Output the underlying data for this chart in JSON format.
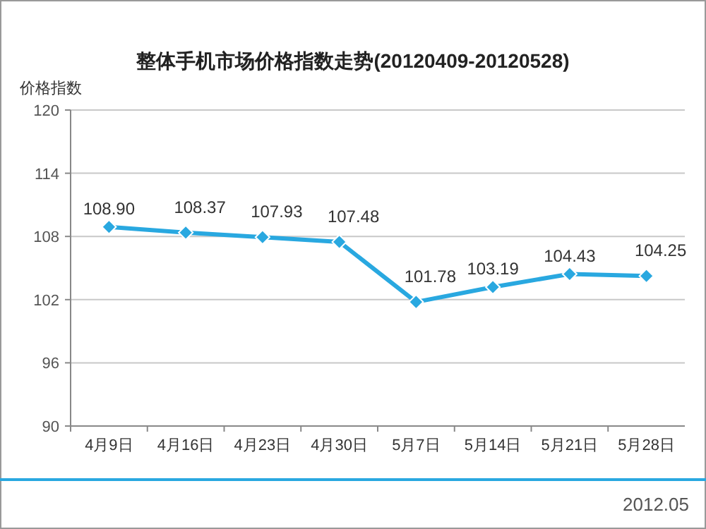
{
  "chart_data": {
    "type": "line",
    "title": "整体手机市场价格指数走势(20120409-20120528)",
    "ylabel": "价格指数",
    "categories": [
      "4月9日",
      "4月16日",
      "4月23日",
      "4月30日",
      "5月7日",
      "5月14日",
      "5月21日",
      "5月28日"
    ],
    "series": [
      {
        "color": "#29a8e0",
        "values": [
          108.9,
          108.37,
          107.93,
          107.48,
          101.78,
          103.19,
          104.43,
          104.25
        ],
        "value_labels": [
          "108.90",
          "108.37",
          "107.93",
          "107.48",
          "101.78",
          "103.19",
          "104.43",
          "104.25"
        ]
      }
    ],
    "ylim": [
      90,
      120
    ],
    "yticks": [
      90,
      96,
      102,
      108,
      114,
      120
    ],
    "grid": "y",
    "marker": "diamond",
    "annotations": [
      "2012.05"
    ]
  }
}
